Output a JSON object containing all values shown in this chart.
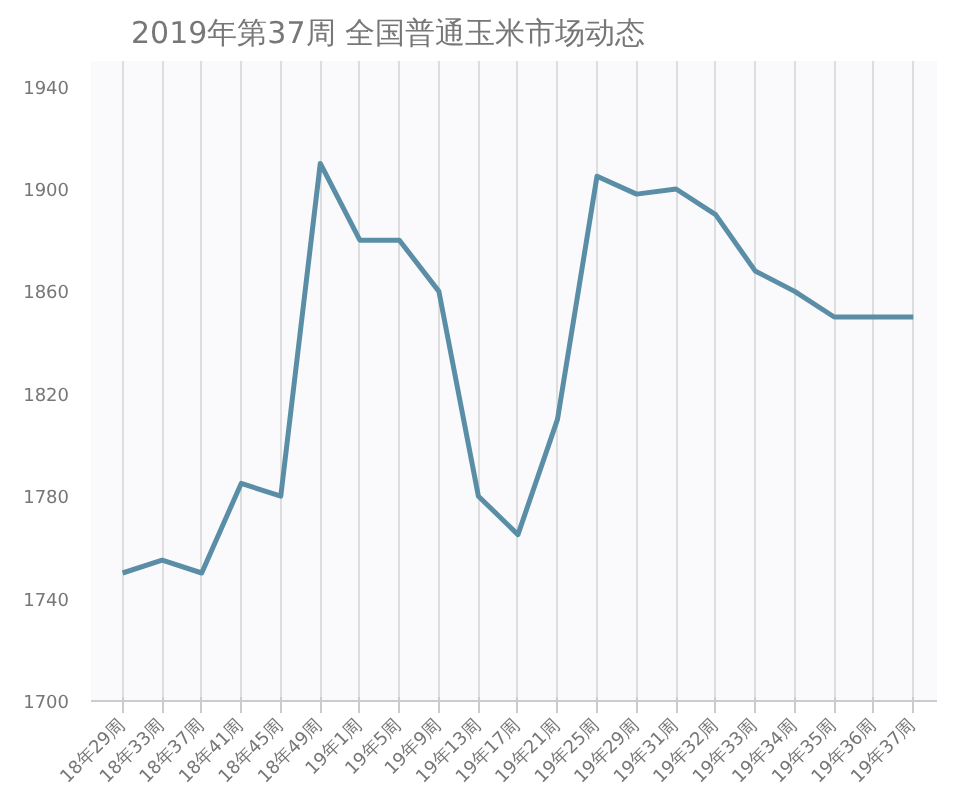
{
  "chart_data": {
    "type": "line",
    "title": "2019年第37周 全国普通玉米市场动态",
    "categories": [
      "18年29周",
      "18年33周",
      "18年37周",
      "18年41周",
      "18年45周",
      "18年49周",
      "19年1周",
      "19年5周",
      "19年9周",
      "19年13周",
      "19年17周",
      "19年21周",
      "19年25周",
      "19年29周",
      "19年31周",
      "19年32周",
      "19年33周",
      "19年34周",
      "19年35周",
      "19年36周",
      "19年37周"
    ],
    "series": [
      {
        "color": "#5a8ea6",
        "values": [
          1750,
          1755,
          1750,
          1785,
          1780,
          1910,
          1880,
          1880,
          1860,
          1780,
          1765,
          1810,
          1905,
          1898,
          1900,
          1890,
          1868,
          1860,
          1850,
          1850,
          1850
        ]
      }
    ],
    "ylim": [
      1700,
      1950
    ],
    "yticks": [
      1700,
      1740,
      1780,
      1820,
      1860,
      1900,
      1940
    ],
    "grid": "x",
    "marker": "none",
    "line_style": "solid"
  }
}
